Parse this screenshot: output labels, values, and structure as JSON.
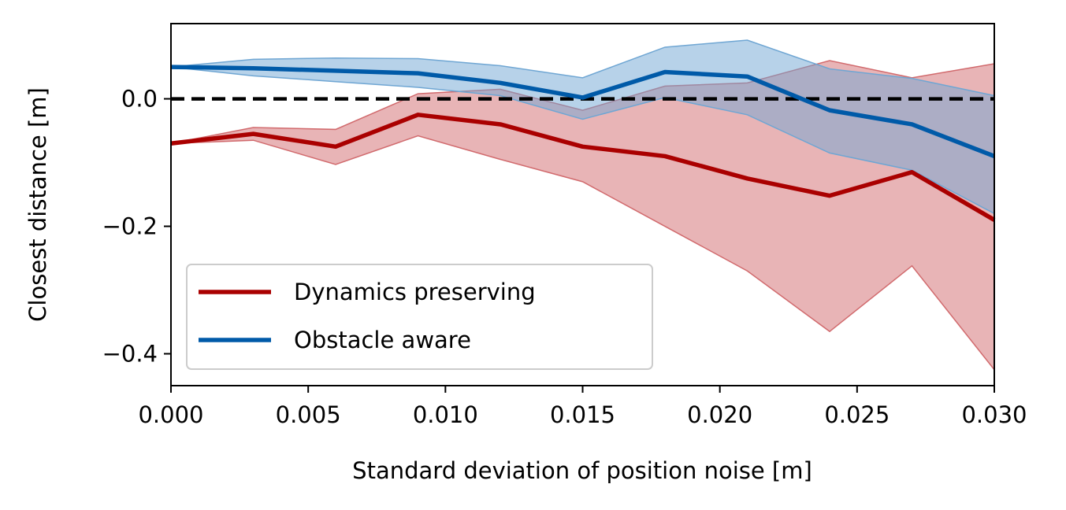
{
  "chart_data": {
    "type": "line",
    "xlabel": "Standard deviation of position noise [m]",
    "ylabel": "Closest distance [m]",
    "xlim": [
      0.0,
      0.03
    ],
    "ylim": [
      -0.45,
      0.118
    ],
    "xticks": [
      0.0,
      0.005,
      0.01,
      0.015,
      0.02,
      0.025,
      0.03
    ],
    "xtick_labels": [
      "0.000",
      "0.005",
      "0.010",
      "0.015",
      "0.020",
      "0.025",
      "0.030"
    ],
    "yticks": [
      -0.4,
      -0.2,
      0.0
    ],
    "ytick_labels": [
      "−0.4",
      "−0.2",
      "0.0"
    ],
    "reference_line": {
      "y": 0.0,
      "style": "dashed",
      "color": "#000000"
    },
    "legend_position": "lower-left",
    "grid": false,
    "x": [
      0.0,
      0.003,
      0.006,
      0.009,
      0.012,
      0.015,
      0.018,
      0.021,
      0.024,
      0.027,
      0.03
    ],
    "series": [
      {
        "name": "Dynamics preserving",
        "color": "#aa0000",
        "band_color": "#d16a6d",
        "values": [
          -0.07,
          -0.055,
          -0.075,
          -0.025,
          -0.04,
          -0.075,
          -0.09,
          -0.125,
          -0.152,
          -0.115,
          -0.19
        ],
        "lower": [
          -0.07,
          -0.065,
          -0.103,
          -0.058,
          -0.095,
          -0.13,
          -0.2,
          -0.27,
          -0.365,
          -0.262,
          -0.425
        ],
        "upper": [
          -0.07,
          -0.045,
          -0.048,
          0.008,
          0.015,
          -0.018,
          0.02,
          0.025,
          0.06,
          0.033,
          0.055
        ]
      },
      {
        "name": "Obstacle aware",
        "color": "#005aa8",
        "band_color": "#6fa6d3",
        "values": [
          0.05,
          0.048,
          0.044,
          0.04,
          0.025,
          0.002,
          0.042,
          0.035,
          -0.018,
          -0.04,
          -0.09
        ],
        "lower": [
          0.05,
          0.036,
          0.027,
          0.018,
          0.005,
          -0.032,
          0.002,
          -0.025,
          -0.085,
          -0.112,
          -0.18
        ],
        "upper": [
          0.05,
          0.062,
          0.064,
          0.063,
          0.052,
          0.033,
          0.081,
          0.092,
          0.047,
          0.032,
          0.005
        ]
      }
    ]
  }
}
